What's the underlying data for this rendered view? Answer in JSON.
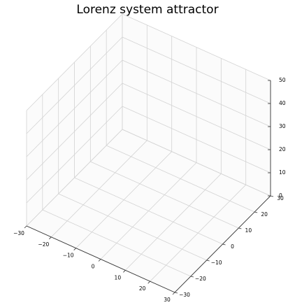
{
  "chart_data": {
    "type": "line",
    "projection": "3d",
    "title": "Lorenz system attractor",
    "xlabel": "",
    "ylabel": "",
    "zlabel": "",
    "xlim": [
      -30,
      30
    ],
    "ylim": [
      -30,
      30
    ],
    "zlim": [
      0,
      50
    ],
    "x_ticks": [
      "−30",
      "−20",
      "−10",
      "0",
      "10",
      "20",
      "30"
    ],
    "y_ticks": [
      "−30",
      "−20",
      "−10",
      "0",
      "10",
      "20",
      "30"
    ],
    "z_ticks": [
      "0",
      "10",
      "20",
      "30",
      "40",
      "50"
    ],
    "grid": true,
    "series": []
  },
  "colors": {
    "pane": "#fbfbfb",
    "grid": "#d3d3d3",
    "axis": "#333333",
    "text": "#000000"
  }
}
